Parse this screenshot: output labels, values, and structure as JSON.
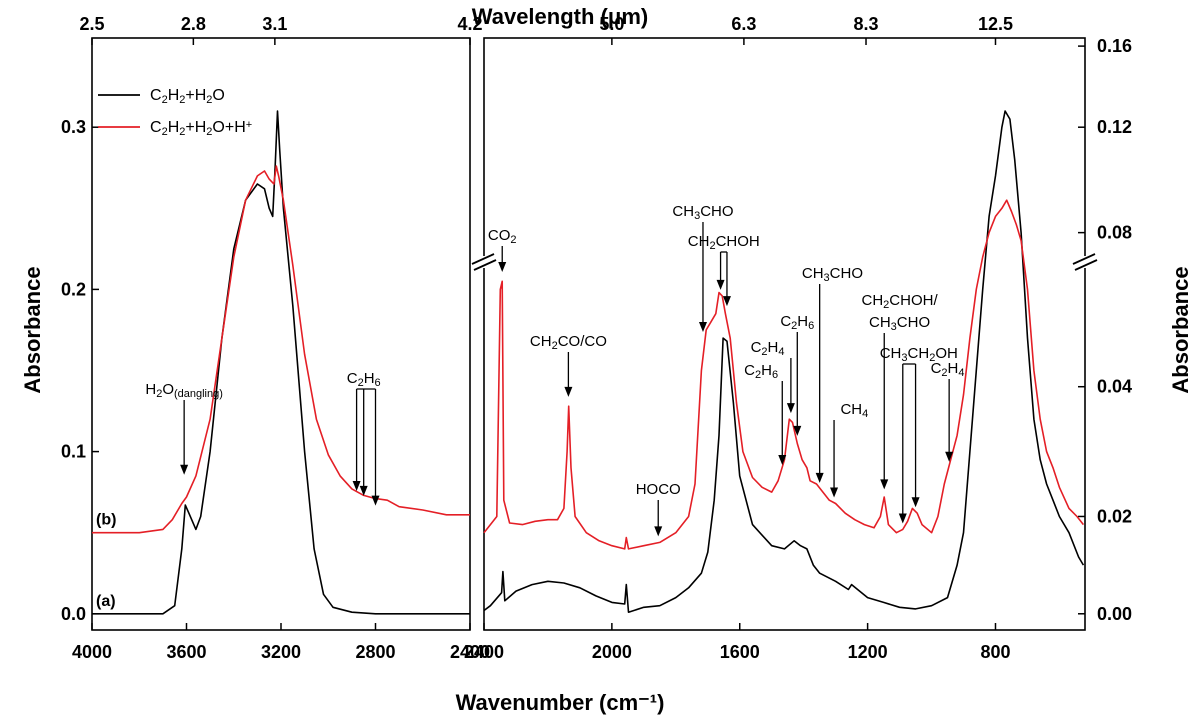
{
  "chart_data": {
    "type": "line",
    "title": "",
    "xlabel": "Wavenumber (cm⁻¹)",
    "x2label": "Wavelength (μm)",
    "ylabel_left": "Absorbance",
    "ylabel_right": "Absorbance",
    "panels": [
      {
        "name": "left",
        "xlim": [
          4000,
          2400
        ],
        "ylim": [
          -0.01,
          0.355
        ],
        "xticks": [
          4000,
          3600,
          3200,
          2800,
          2400
        ],
        "xtick_labels": [
          "4000",
          "3600",
          "3200",
          "2800",
          "2400"
        ],
        "yticks": [
          0.0,
          0.1,
          0.2,
          0.3
        ],
        "ytick_labels": [
          "0.0",
          "0.1",
          "0.2",
          "0.3"
        ],
        "top_ticks": [
          4000,
          3571,
          3226,
          2400
        ],
        "top_tick_labels": [
          "2.5",
          "2.8",
          "3.1",
          "4.2"
        ]
      },
      {
        "name": "right",
        "xlim": [
          2400,
          520
        ],
        "ylim": [
          -0.01,
          0.355
        ],
        "xticks": [
          2400,
          2000,
          1600,
          1200,
          800
        ],
        "xtick_labels": [
          "2400",
          "2000",
          "1600",
          "1200",
          "800"
        ],
        "top_ticks": [
          2000,
          1587,
          1205,
          800
        ],
        "top_tick_labels": [
          "5.0",
          "6.3",
          "8.3",
          "12.5"
        ],
        "right_yticks": [
          0.0,
          0.06,
          0.14,
          0.235,
          0.3,
          0.35
        ],
        "right_ytick_labels": [
          "0.00",
          "0.02",
          "0.04",
          "0.08",
          "0.12",
          "0.16"
        ]
      }
    ],
    "series": [
      {
        "name": "C2H2+H2O",
        "label_main": "C",
        "label_sub1": "2",
        "label_mid1": "H",
        "label_sub2": "2",
        "label_mid2": "+H",
        "label_sub3": "2",
        "label_end": "O",
        "color": "#000000",
        "trace_label": "(a)",
        "left": [
          [
            4000,
            0.0
          ],
          [
            3800,
            0.0
          ],
          [
            3700,
            0.0
          ],
          [
            3650,
            0.005
          ],
          [
            3620,
            0.04
          ],
          [
            3605,
            0.067
          ],
          [
            3590,
            0.062
          ],
          [
            3560,
            0.052
          ],
          [
            3540,
            0.06
          ],
          [
            3500,
            0.1
          ],
          [
            3450,
            0.17
          ],
          [
            3400,
            0.225
          ],
          [
            3350,
            0.255
          ],
          [
            3300,
            0.265
          ],
          [
            3270,
            0.262
          ],
          [
            3250,
            0.25
          ],
          [
            3235,
            0.245
          ],
          [
            3225,
            0.275
          ],
          [
            3215,
            0.31
          ],
          [
            3205,
            0.285
          ],
          [
            3190,
            0.25
          ],
          [
            3150,
            0.19
          ],
          [
            3100,
            0.1
          ],
          [
            3060,
            0.04
          ],
          [
            3020,
            0.012
          ],
          [
            2980,
            0.004
          ],
          [
            2900,
            0.001
          ],
          [
            2800,
            0.0
          ],
          [
            2400,
            0.0
          ]
        ],
        "right": [
          [
            2400,
            0.002
          ],
          [
            2380,
            0.005
          ],
          [
            2345,
            0.013
          ],
          [
            2341,
            0.026
          ],
          [
            2335,
            0.008
          ],
          [
            2300,
            0.014
          ],
          [
            2250,
            0.018
          ],
          [
            2200,
            0.02
          ],
          [
            2150,
            0.019
          ],
          [
            2100,
            0.016
          ],
          [
            2050,
            0.011
          ],
          [
            2000,
            0.007
          ],
          [
            1960,
            0.006
          ],
          [
            1955,
            0.018
          ],
          [
            1948,
            0.001
          ],
          [
            1900,
            0.004
          ],
          [
            1850,
            0.005
          ],
          [
            1800,
            0.01
          ],
          [
            1760,
            0.016
          ],
          [
            1720,
            0.025
          ],
          [
            1700,
            0.038
          ],
          [
            1680,
            0.07
          ],
          [
            1665,
            0.11
          ],
          [
            1652,
            0.17
          ],
          [
            1640,
            0.168
          ],
          [
            1620,
            0.13
          ],
          [
            1600,
            0.085
          ],
          [
            1560,
            0.055
          ],
          [
            1500,
            0.042
          ],
          [
            1460,
            0.04
          ],
          [
            1430,
            0.045
          ],
          [
            1410,
            0.042
          ],
          [
            1390,
            0.04
          ],
          [
            1370,
            0.03
          ],
          [
            1350,
            0.025
          ],
          [
            1300,
            0.02
          ],
          [
            1260,
            0.015
          ],
          [
            1250,
            0.018
          ],
          [
            1200,
            0.01
          ],
          [
            1150,
            0.007
          ],
          [
            1100,
            0.004
          ],
          [
            1050,
            0.003
          ],
          [
            1000,
            0.005
          ],
          [
            950,
            0.01
          ],
          [
            920,
            0.03
          ],
          [
            900,
            0.05
          ],
          [
            880,
            0.1
          ],
          [
            860,
            0.15
          ],
          [
            840,
            0.2
          ],
          [
            820,
            0.245
          ],
          [
            800,
            0.27
          ],
          [
            780,
            0.3
          ],
          [
            770,
            0.31
          ],
          [
            755,
            0.305
          ],
          [
            740,
            0.28
          ],
          [
            720,
            0.235
          ],
          [
            700,
            0.17
          ],
          [
            680,
            0.12
          ],
          [
            660,
            0.095
          ],
          [
            640,
            0.08
          ],
          [
            620,
            0.07
          ],
          [
            600,
            0.06
          ],
          [
            570,
            0.05
          ],
          [
            540,
            0.035
          ],
          [
            525,
            0.03
          ]
        ]
      },
      {
        "name": "C2H2+H2O+H+",
        "label_main": "C",
        "label_sub1": "2",
        "label_mid1": "H",
        "label_sub2": "2",
        "label_mid2": "+H",
        "label_sub3": "2",
        "label_end": "O+H",
        "label_sup": "+",
        "color": "#e41f26",
        "trace_label": "(b)",
        "left": [
          [
            4000,
            0.05
          ],
          [
            3800,
            0.05
          ],
          [
            3700,
            0.052
          ],
          [
            3660,
            0.058
          ],
          [
            3620,
            0.068
          ],
          [
            3600,
            0.072
          ],
          [
            3560,
            0.085
          ],
          [
            3500,
            0.12
          ],
          [
            3450,
            0.17
          ],
          [
            3400,
            0.22
          ],
          [
            3350,
            0.255
          ],
          [
            3300,
            0.27
          ],
          [
            3270,
            0.273
          ],
          [
            3250,
            0.268
          ],
          [
            3230,
            0.265
          ],
          [
            3220,
            0.276
          ],
          [
            3210,
            0.27
          ],
          [
            3190,
            0.255
          ],
          [
            3150,
            0.215
          ],
          [
            3100,
            0.16
          ],
          [
            3050,
            0.12
          ],
          [
            3000,
            0.098
          ],
          [
            2950,
            0.085
          ],
          [
            2900,
            0.077
          ],
          [
            2850,
            0.073
          ],
          [
            2800,
            0.071
          ],
          [
            2750,
            0.07
          ],
          [
            2700,
            0.066
          ],
          [
            2600,
            0.064
          ],
          [
            2500,
            0.061
          ],
          [
            2400,
            0.061
          ]
        ],
        "right": [
          [
            2400,
            0.05
          ],
          [
            2380,
            0.055
          ],
          [
            2360,
            0.06
          ],
          [
            2349,
            0.2
          ],
          [
            2343,
            0.205
          ],
          [
            2338,
            0.07
          ],
          [
            2320,
            0.056
          ],
          [
            2280,
            0.055
          ],
          [
            2240,
            0.057
          ],
          [
            2200,
            0.058
          ],
          [
            2170,
            0.058
          ],
          [
            2150,
            0.065
          ],
          [
            2140,
            0.1
          ],
          [
            2135,
            0.128
          ],
          [
            2128,
            0.09
          ],
          [
            2115,
            0.06
          ],
          [
            2080,
            0.05
          ],
          [
            2040,
            0.045
          ],
          [
            2000,
            0.042
          ],
          [
            1960,
            0.04
          ],
          [
            1955,
            0.047
          ],
          [
            1948,
            0.04
          ],
          [
            1900,
            0.042
          ],
          [
            1850,
            0.044
          ],
          [
            1800,
            0.05
          ],
          [
            1760,
            0.06
          ],
          [
            1740,
            0.08
          ],
          [
            1720,
            0.15
          ],
          [
            1705,
            0.175
          ],
          [
            1690,
            0.18
          ],
          [
            1675,
            0.185
          ],
          [
            1665,
            0.198
          ],
          [
            1655,
            0.196
          ],
          [
            1645,
            0.185
          ],
          [
            1630,
            0.17
          ],
          [
            1610,
            0.13
          ],
          [
            1590,
            0.1
          ],
          [
            1560,
            0.084
          ],
          [
            1530,
            0.078
          ],
          [
            1500,
            0.075
          ],
          [
            1480,
            0.082
          ],
          [
            1460,
            0.095
          ],
          [
            1445,
            0.12
          ],
          [
            1435,
            0.118
          ],
          [
            1420,
            0.105
          ],
          [
            1405,
            0.095
          ],
          [
            1390,
            0.09
          ],
          [
            1380,
            0.082
          ],
          [
            1360,
            0.08
          ],
          [
            1340,
            0.075
          ],
          [
            1320,
            0.07
          ],
          [
            1300,
            0.068
          ],
          [
            1270,
            0.062
          ],
          [
            1240,
            0.058
          ],
          [
            1210,
            0.055
          ],
          [
            1180,
            0.053
          ],
          [
            1160,
            0.06
          ],
          [
            1148,
            0.072
          ],
          [
            1135,
            0.055
          ],
          [
            1110,
            0.05
          ],
          [
            1090,
            0.052
          ],
          [
            1075,
            0.057
          ],
          [
            1060,
            0.065
          ],
          [
            1045,
            0.062
          ],
          [
            1030,
            0.055
          ],
          [
            1000,
            0.05
          ],
          [
            980,
            0.06
          ],
          [
            960,
            0.08
          ],
          [
            940,
            0.095
          ],
          [
            920,
            0.11
          ],
          [
            900,
            0.135
          ],
          [
            880,
            0.17
          ],
          [
            860,
            0.2
          ],
          [
            840,
            0.22
          ],
          [
            820,
            0.235
          ],
          [
            800,
            0.245
          ],
          [
            780,
            0.25
          ],
          [
            765,
            0.255
          ],
          [
            750,
            0.248
          ],
          [
            735,
            0.24
          ],
          [
            720,
            0.23
          ],
          [
            700,
            0.2
          ],
          [
            680,
            0.15
          ],
          [
            660,
            0.12
          ],
          [
            640,
            0.1
          ],
          [
            620,
            0.09
          ],
          [
            600,
            0.078
          ],
          [
            570,
            0.065
          ],
          [
            545,
            0.06
          ],
          [
            525,
            0.055
          ]
        ]
      }
    ],
    "annotations": [
      {
        "name": "H2O-dangling",
        "panel": "left",
        "arrows": [
          [
            3610,
            0.082
          ]
        ],
        "label_x": 3610,
        "text": "H",
        "sub1": "2",
        "mid": "O",
        "sub2": "(dangling)"
      },
      {
        "name": "C2H6-left",
        "panel": "left",
        "arrows": [
          [
            2880,
            0.072
          ],
          [
            2850,
            0.069
          ],
          [
            2800,
            0.063
          ]
        ],
        "label_x": 2850,
        "text": "C",
        "sub1": "2",
        "mid": "H",
        "sub2": "6"
      },
      {
        "name": "CO2",
        "panel": "right",
        "arrows": [
          [
            2343,
            0.207
          ]
        ],
        "label_x": 2343,
        "text": "CO",
        "sub1": "2"
      },
      {
        "name": "CH2CO-CO",
        "panel": "right",
        "arrows": [
          [
            2136,
            0.13
          ]
        ],
        "label_x": 2136,
        "text": "CH",
        "sub1": "2",
        "mid": "CO/CO"
      },
      {
        "name": "HOCO",
        "panel": "right",
        "arrows": [
          [
            1855,
            0.044
          ]
        ],
        "label_x": 1855,
        "text": "HOCO"
      },
      {
        "name": "CH3CHO-1",
        "panel": "right",
        "arrows": [
          [
            1715,
            0.17
          ]
        ],
        "label_x": 1715,
        "text": "CH",
        "sub1": "3",
        "mid": "CHO"
      },
      {
        "name": "CH2CHOH-1",
        "panel": "right",
        "arrows": [
          [
            1660,
            0.196
          ],
          [
            1640,
            0.186
          ]
        ],
        "label_x": 1650,
        "text": "CH",
        "sub1": "2",
        "mid": "CHOH"
      },
      {
        "name": "C2H6-r1",
        "panel": "right",
        "arrows": [
          [
            1467,
            0.088
          ]
        ],
        "label_x": 1480,
        "text": "C",
        "sub1": "2",
        "mid": "H",
        "sub2": "6"
      },
      {
        "name": "C2H4-r1",
        "panel": "right",
        "arrows": [
          [
            1440,
            0.12
          ]
        ],
        "label_x": 1460,
        "text": "C",
        "sub1": "2",
        "mid": "H",
        "sub2": "4"
      },
      {
        "name": "C2H6-r2",
        "panel": "right",
        "arrows": [
          [
            1420,
            0.106
          ]
        ],
        "label_x": 1420,
        "text": "C",
        "sub1": "2",
        "mid": "H",
        "sub2": "6"
      },
      {
        "name": "CH3CHO-2",
        "panel": "right",
        "arrows": [
          [
            1350,
            0.077
          ]
        ],
        "label_x": 1310,
        "text": "CH",
        "sub1": "3",
        "mid": "CHO"
      },
      {
        "name": "CH4",
        "panel": "right",
        "arrows": [
          [
            1305,
            0.068
          ]
        ],
        "label_x": 1285,
        "text": "CH",
        "sub1": "4"
      },
      {
        "name": "CH2CHOH-CH3CHO",
        "panel": "right",
        "arrows": [
          [
            1148,
            0.073
          ]
        ],
        "label_x": 1100,
        "text": "CH",
        "sub1": "2",
        "mid": "CHOH/",
        "line2": "CH",
        "line2sub": "3",
        "line2end": "CHO"
      },
      {
        "name": "CH3CH2OH",
        "panel": "right",
        "arrows": [
          [
            1090,
            0.052
          ],
          [
            1050,
            0.062
          ]
        ],
        "label_x": 1040,
        "text": "CH",
        "sub1": "3",
        "mid": "CH",
        "sub2": "2",
        "end": "OH"
      },
      {
        "name": "C2H4-r2",
        "panel": "right",
        "arrows": [
          [
            945,
            0.09
          ]
        ],
        "label_x": 950,
        "text": "C",
        "sub1": "2",
        "mid": "H",
        "sub2": "4"
      }
    ]
  }
}
